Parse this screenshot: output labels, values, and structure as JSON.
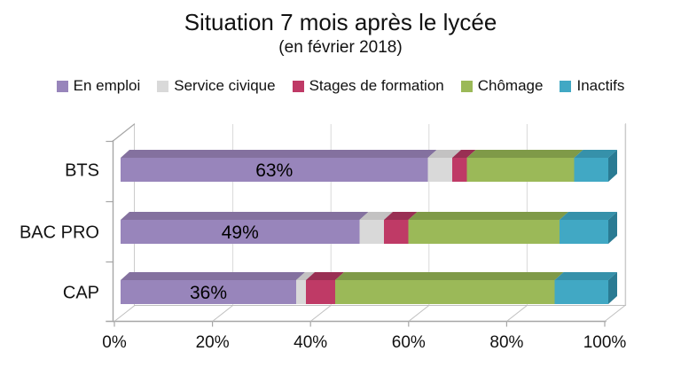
{
  "title": "Situation 7 mois après le lycée",
  "subtitle": "(en février 2018)",
  "colors": {
    "axis": "#a6a6a6",
    "frame": "#bfbfbf",
    "gridline": "#d9d9d9",
    "text": "#111111",
    "background": "#ffffff"
  },
  "chart_data": {
    "type": "bar",
    "stacked": true,
    "orientation": "horizontal",
    "style": "3d",
    "title": "Situation 7 mois après le lycée",
    "subtitle": "(en février 2018)",
    "categories": [
      "BTS",
      "BAC PRO",
      "CAP"
    ],
    "series": [
      {
        "name": "En emploi",
        "color": "#9885bb",
        "top": "#84719f",
        "values": [
          63,
          49,
          36
        ],
        "data_labels": [
          "63%",
          "49%",
          "36%"
        ]
      },
      {
        "name": "Service civique",
        "color": "#d9d9d9",
        "top": "#c3c2c2",
        "values": [
          5,
          5,
          2
        ]
      },
      {
        "name": "Stages de formation",
        "color": "#bf3a66",
        "top": "#992f53",
        "values": [
          3,
          5,
          6
        ]
      },
      {
        "name": "Chômage",
        "color": "#9bb958",
        "top": "#7f9a48",
        "values": [
          22,
          31,
          45
        ]
      },
      {
        "name": "Inactifs",
        "color": "#41a8c4",
        "top": "#3691aa",
        "side": "#2a7b93",
        "values": [
          7,
          10,
          11
        ]
      }
    ],
    "x_ticks": [
      "0%",
      "20%",
      "40%",
      "60%",
      "80%",
      "100%"
    ],
    "xlim": [
      0,
      100
    ],
    "ylabel": "",
    "xlabel": "",
    "grid": true,
    "legend_position": "top"
  }
}
